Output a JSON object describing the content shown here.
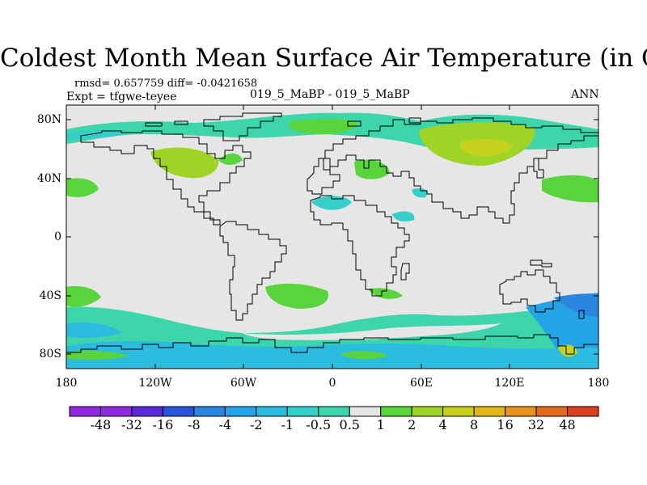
{
  "title": "Coldest Month Mean Surface Air Temperature (in C)",
  "stats": {
    "rmsd_diff": "rmsd= 0.657759 diff= -0.0421658",
    "expt": "Expt = tfgwe-teyee",
    "comparison": "019_5_MaBP - 019_5_MaBP",
    "season": "ANN"
  },
  "axes": {
    "y_ticks": [
      "80N",
      "40N",
      "0",
      "40S",
      "80S"
    ],
    "x_ticks": [
      "180",
      "120W",
      "60W",
      "0",
      "60E",
      "120E",
      "180"
    ]
  },
  "colorbar": {
    "labels": [
      "-48",
      "-32",
      "-16",
      "-8",
      "-4",
      "-2",
      "-1",
      "-0.5",
      "0.5",
      "1",
      "2",
      "4",
      "8",
      "16",
      "32",
      "48"
    ],
    "colors": [
      "#8f2bdc",
      "#5a2bd8",
      "#2a55d8",
      "#2a86df",
      "#24a4e6",
      "#2bbce0",
      "#34cfc8",
      "#3dd6aa",
      "#e6e6e6",
      "#5ad43c",
      "#9ed426",
      "#c6d21e",
      "#e0b81e",
      "#e4941e",
      "#e06a1e",
      "#d8401e"
    ]
  },
  "legend_colors": {
    "background": "#e6e6e6",
    "cool_light": "#34cfc8",
    "cool_mid": "#2bbce0",
    "cool_strong": "#24a4e6",
    "warm_light": "#5ad43c",
    "warm_mid": "#9ed426",
    "warm_strong": "#c6d21e"
  }
}
